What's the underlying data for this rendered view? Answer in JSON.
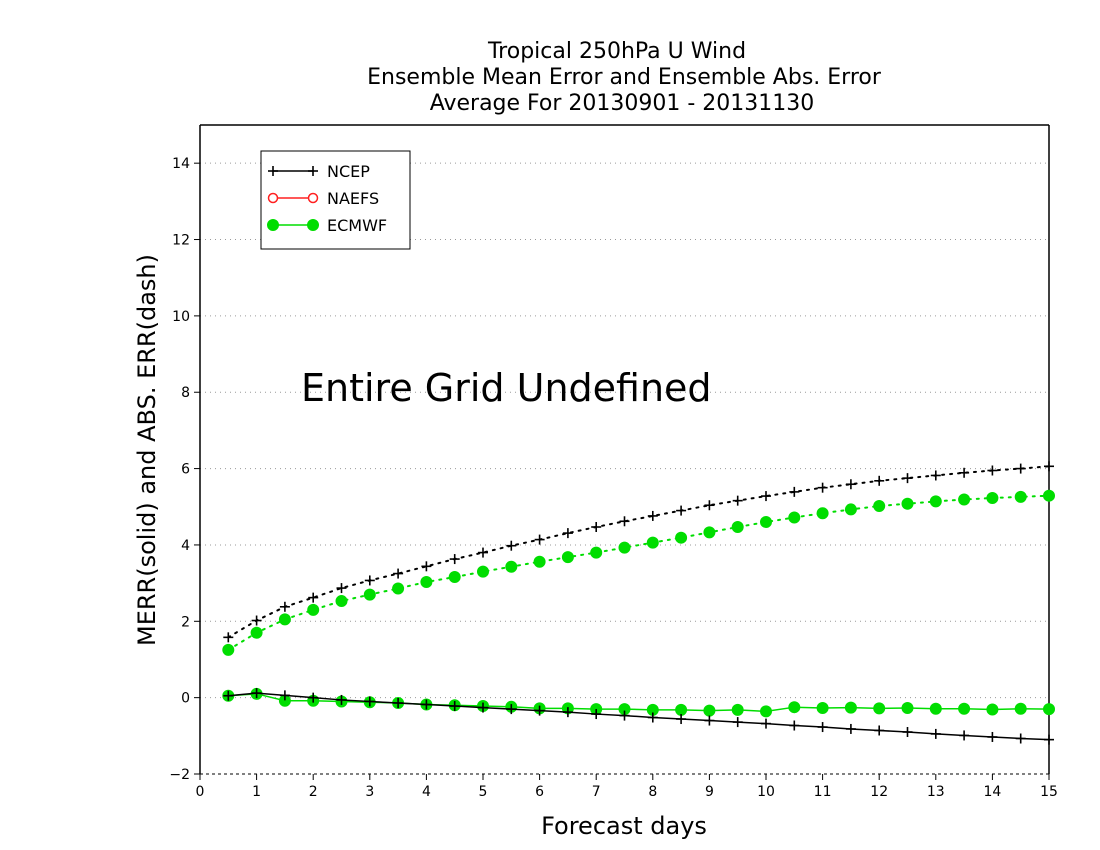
{
  "chart_data": {
    "type": "line",
    "title_lines": [
      "Tropical 250hPa U Wind",
      "Ensemble Mean Error and Ensemble Abs. Error",
      "Average For 20130901 - 20131130"
    ],
    "xlabel": "Forecast days",
    "ylabel": "MERR(solid) and ABS. ERR(dash)",
    "xlim": [
      0,
      15
    ],
    "ylim": [
      -2,
      15
    ],
    "xticks": [
      0,
      1,
      2,
      3,
      4,
      5,
      6,
      7,
      8,
      9,
      10,
      11,
      12,
      13,
      14,
      15
    ],
    "yticks": [
      -2,
      0,
      2,
      4,
      6,
      8,
      10,
      12,
      14
    ],
    "grid": "horizontal dotted",
    "legend_position": "top-left",
    "annotation": "Entire Grid Undefined",
    "x": [
      0.5,
      1,
      1.5,
      2,
      2.5,
      3,
      3.5,
      4,
      4.5,
      5,
      5.5,
      6,
      6.5,
      7,
      7.5,
      8,
      8.5,
      9,
      9.5,
      10,
      10.5,
      11,
      11.5,
      12,
      12.5,
      13,
      13.5,
      14,
      14.5,
      15
    ],
    "series": [
      {
        "name": "NCEP",
        "color": "#000000",
        "marker": "plus",
        "merr": [
          0.05,
          0.12,
          0.06,
          0.0,
          -0.06,
          -0.1,
          -0.14,
          -0.18,
          -0.22,
          -0.26,
          -0.3,
          -0.34,
          -0.38,
          -0.43,
          -0.47,
          -0.52,
          -0.56,
          -0.6,
          -0.64,
          -0.68,
          -0.73,
          -0.77,
          -0.82,
          -0.86,
          -0.9,
          -0.95,
          -0.99,
          -1.03,
          -1.07,
          -1.1
        ],
        "abs_err": [
          1.58,
          2.02,
          2.38,
          2.62,
          2.87,
          3.07,
          3.25,
          3.44,
          3.63,
          3.8,
          3.98,
          4.14,
          4.31,
          4.47,
          4.62,
          4.76,
          4.9,
          5.04,
          5.16,
          5.28,
          5.39,
          5.5,
          5.59,
          5.68,
          5.75,
          5.82,
          5.89,
          5.95,
          6.0,
          6.06
        ]
      },
      {
        "name": "NAEFS",
        "color": "#ff2020",
        "marker": "open-circle",
        "merr": [],
        "abs_err": []
      },
      {
        "name": "ECMWF",
        "color": "#00dd00",
        "marker": "filled-circle",
        "merr": [
          0.05,
          0.1,
          -0.08,
          -0.08,
          -0.1,
          -0.12,
          -0.14,
          -0.18,
          -0.2,
          -0.22,
          -0.24,
          -0.28,
          -0.28,
          -0.3,
          -0.3,
          -0.32,
          -0.32,
          -0.34,
          -0.32,
          -0.36,
          -0.25,
          -0.27,
          -0.26,
          -0.28,
          -0.27,
          -0.29,
          -0.29,
          -0.31,
          -0.29,
          -0.3
        ],
        "abs_err": [
          1.25,
          1.7,
          2.05,
          2.3,
          2.53,
          2.7,
          2.86,
          3.03,
          3.16,
          3.3,
          3.43,
          3.56,
          3.68,
          3.8,
          3.93,
          4.06,
          4.19,
          4.33,
          4.47,
          4.6,
          4.72,
          4.83,
          4.93,
          5.02,
          5.08,
          5.14,
          5.19,
          5.23,
          5.26,
          5.29
        ]
      }
    ]
  }
}
